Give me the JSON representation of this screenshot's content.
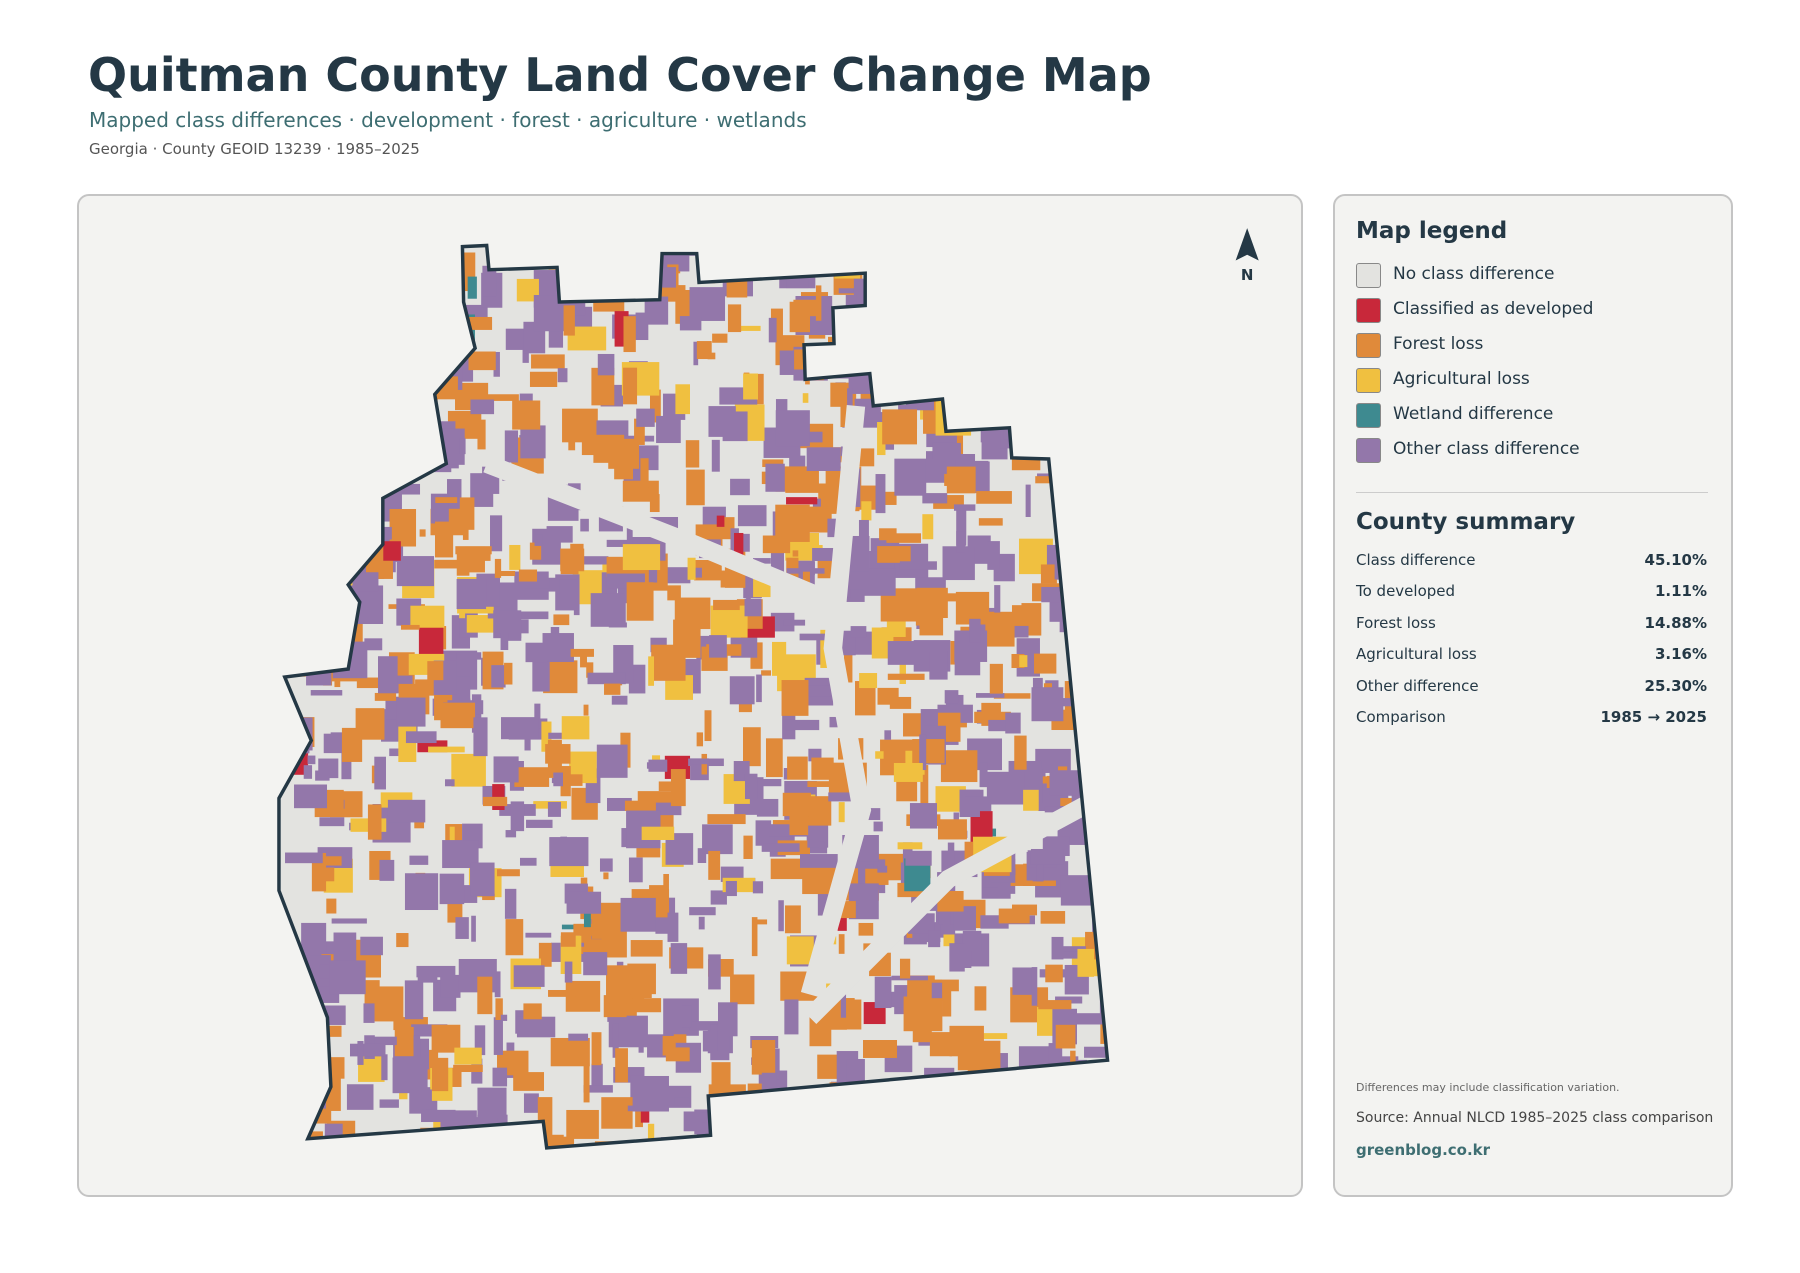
{
  "header": {
    "title": "Quitman County Land Cover Change Map",
    "subtitle": "Mapped class differences · development · forest · agriculture · wetlands",
    "meta": "Georgia · County GEOID 13239 · 1985–2025"
  },
  "map": {
    "north_label": "N"
  },
  "legend": {
    "title": "Map legend",
    "items": [
      {
        "label": "No class difference",
        "color": "#e3e3e0"
      },
      {
        "label": "Classified as developed",
        "color": "#c8283a"
      },
      {
        "label": "Forest loss",
        "color": "#e08a3a"
      },
      {
        "label": "Agricultural loss",
        "color": "#f0c040"
      },
      {
        "label": "Wetland difference",
        "color": "#3e8a90"
      },
      {
        "label": "Other class difference",
        "color": "#9377aa"
      }
    ]
  },
  "summary": {
    "title": "County summary",
    "rows": [
      [
        "Class difference",
        "45.10%"
      ],
      [
        "To developed",
        "1.11%"
      ],
      [
        "Forest loss",
        "14.88%"
      ],
      [
        "Agricultural loss",
        "3.16%"
      ],
      [
        "Other difference",
        "25.30%"
      ],
      [
        "Comparison",
        "1985 → 2025"
      ]
    ]
  },
  "footer": {
    "note": "Differences may include classification variation.",
    "source": "Source: Annual NLCD 1985–2025 class comparison",
    "credit": "greenblog.co.kr"
  }
}
